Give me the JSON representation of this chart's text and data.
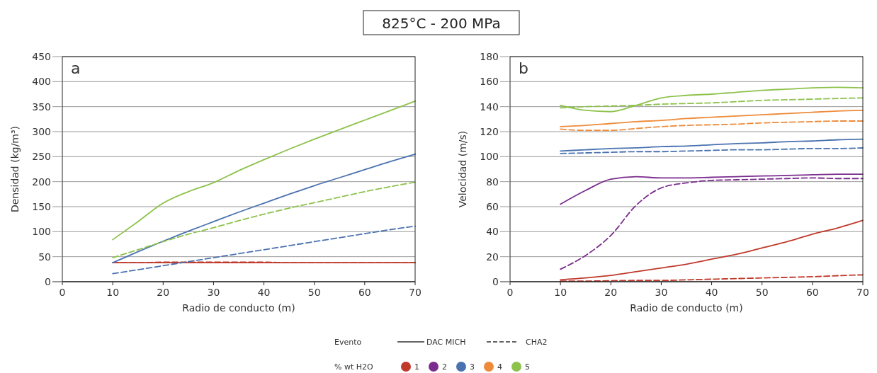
{
  "chart_data": [
    {
      "type": "line",
      "title": "825°C - 200 MPa",
      "xlabel": "Radio de conducto (m)",
      "ylabel": "Densidad (kg/m³)",
      "annotations": [
        "a"
      ],
      "x": [
        10,
        15,
        20,
        25,
        30,
        35,
        40,
        45,
        50,
        55,
        60,
        65,
        70
      ],
      "xlim": [
        0,
        70
      ],
      "xticks": [
        0,
        10,
        20,
        30,
        40,
        50,
        60,
        70
      ],
      "ylim": [
        0,
        450
      ],
      "yticks": [
        0,
        50,
        100,
        150,
        200,
        250,
        300,
        350,
        400,
        450
      ],
      "grid": "y",
      "marker": "none",
      "series": [
        {
          "color": "#c0392b",
          "line_style": "solid",
          "values": [
            38,
            38,
            38,
            38,
            38,
            38,
            38,
            38,
            38,
            38,
            38,
            38,
            38
          ]
        },
        {
          "color": "#c0392b",
          "line_style": "dashed",
          "values": [
            38,
            38,
            39,
            39,
            39,
            39,
            39,
            38,
            38,
            38,
            38,
            38,
            38
          ]
        },
        {
          "color": "#4a72b0",
          "line_style": "solid",
          "values": [
            38,
            60,
            81,
            101,
            120,
            139,
            157,
            175,
            192,
            208,
            224,
            240,
            255
          ]
        },
        {
          "color": "#4a72b0",
          "line_style": "dashed",
          "values": [
            16,
            24,
            32,
            40,
            48,
            56,
            64,
            72,
            80,
            88,
            96,
            104,
            111
          ]
        },
        {
          "color": "#8dc24b",
          "line_style": "solid",
          "values": [
            84,
            120,
            157,
            180,
            198,
            222,
            244,
            265,
            285,
            304,
            323,
            342,
            361
          ]
        },
        {
          "color": "#8dc24b",
          "line_style": "dashed",
          "values": [
            48,
            64,
            80,
            95,
            108,
            122,
            135,
            147,
            158,
            169,
            180,
            190,
            199
          ]
        }
      ]
    },
    {
      "type": "line",
      "xlabel": "Radio de conducto (m)",
      "ylabel": "Velocidad (m/s)",
      "annotations": [
        "b"
      ],
      "x": [
        10,
        15,
        20,
        25,
        30,
        35,
        40,
        45,
        50,
        55,
        60,
        65,
        70
      ],
      "xlim": [
        0,
        70
      ],
      "xticks": [
        0,
        10,
        20,
        30,
        40,
        50,
        60,
        70
      ],
      "ylim": [
        0,
        180
      ],
      "yticks": [
        0,
        20,
        40,
        60,
        80,
        100,
        120,
        140,
        160,
        180
      ],
      "grid": "y",
      "marker": "none",
      "legend": "bottom",
      "legend_title": "% wt H2O",
      "series": [
        {
          "name": "1",
          "color": "#c0392b",
          "line_style": "solid",
          "values": [
            1.5,
            3,
            5,
            8,
            11,
            14,
            18,
            22,
            27,
            32,
            38,
            43,
            49
          ]
        },
        {
          "color": "#c0392b",
          "line_style": "dashed",
          "values": [
            0.5,
            0.5,
            0.8,
            1,
            1,
            1.5,
            2,
            2.5,
            3,
            3.5,
            4,
            4.8,
            5.5
          ]
        },
        {
          "name": "2",
          "color": "#7b2d8e",
          "line_style": "solid",
          "values": [
            62,
            73,
            82,
            84,
            83,
            83,
            83.5,
            84,
            84.5,
            85,
            85.5,
            86,
            86
          ]
        },
        {
          "color": "#7b2d8e",
          "line_style": "dashed",
          "values": [
            10,
            21,
            37,
            61,
            75,
            79,
            81,
            81.5,
            82,
            82.5,
            83,
            82.5,
            82.5
          ]
        },
        {
          "name": "3",
          "color": "#4a72b0",
          "line_style": "solid",
          "values": [
            104.5,
            105.5,
            106.5,
            107,
            108,
            108.5,
            109.5,
            110.5,
            111,
            112,
            112.5,
            113.5,
            114
          ]
        },
        {
          "color": "#4a72b0",
          "line_style": "dashed",
          "values": [
            102.5,
            103,
            103.5,
            104,
            104,
            104.5,
            105,
            105.5,
            105.5,
            106,
            106.5,
            106.5,
            107
          ]
        },
        {
          "name": "4",
          "color": "#ee8b3a",
          "line_style": "solid",
          "values": [
            124,
            125,
            126.5,
            128,
            129,
            130.5,
            131.5,
            132.5,
            133.5,
            134.5,
            135.5,
            136.5,
            137
          ]
        },
        {
          "color": "#ee8b3a",
          "line_style": "dashed",
          "values": [
            122,
            121,
            121,
            122.5,
            124,
            125,
            125.5,
            126,
            127,
            127.5,
            128,
            128.5,
            128.5
          ]
        },
        {
          "name": "5",
          "color": "#8dc24b",
          "line_style": "solid",
          "values": [
            141,
            137,
            136,
            141,
            147,
            149,
            150,
            151.5,
            153,
            154,
            155,
            155.5,
            155
          ]
        },
        {
          "color": "#8dc24b",
          "line_style": "dashed",
          "values": [
            139,
            140,
            140.5,
            141,
            142,
            142.5,
            143,
            144,
            145,
            145.5,
            146,
            146.5,
            147
          ]
        }
      ]
    },
    {
      "type": "other",
      "annotations": [
        "Evento",
        "DAC MICH",
        "CHA2"
      ]
    }
  ]
}
